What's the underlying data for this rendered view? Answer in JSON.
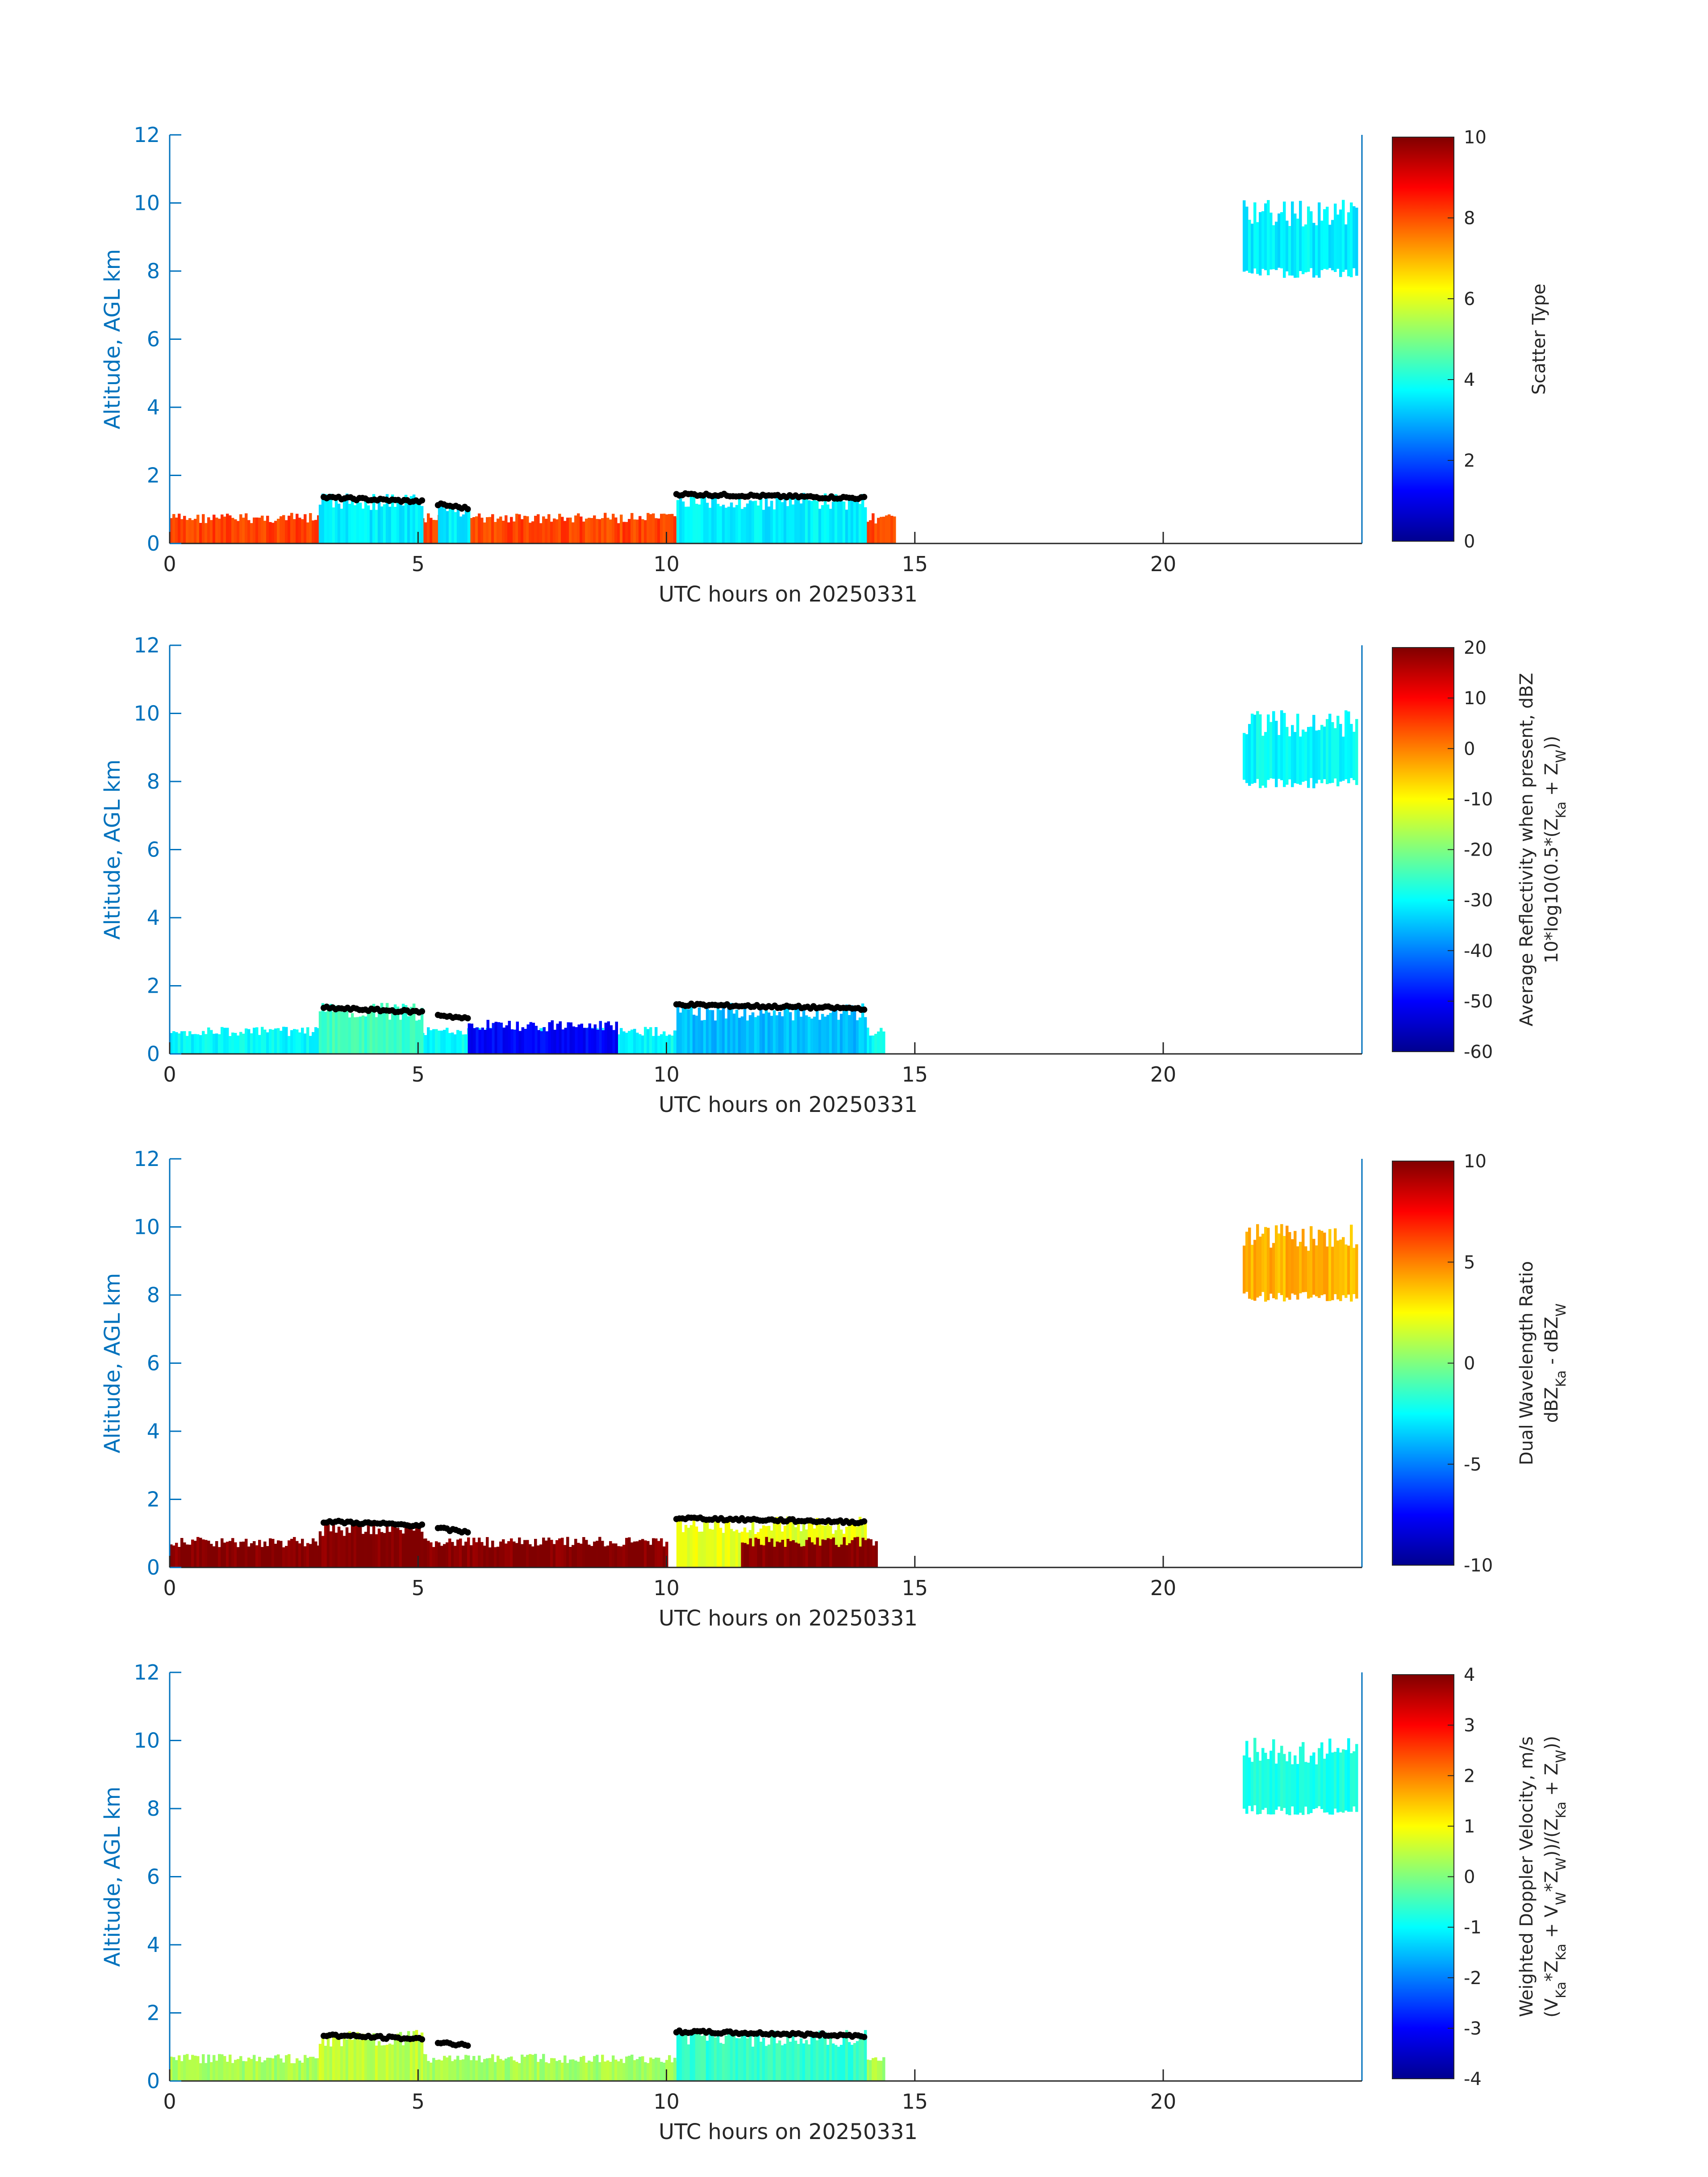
{
  "chart_data": [
    {
      "type": "heatmap",
      "xlabel": "UTC hours on 20250331",
      "ylabel": "Altitude, AGL km",
      "xlim": [
        0,
        24
      ],
      "ylim": [
        0,
        12
      ],
      "x_ticks": [
        0,
        5,
        10,
        15,
        20
      ],
      "y_ticks": [
        0,
        2,
        4,
        6,
        8,
        10,
        12
      ],
      "colorbar": {
        "label_lines": [
          "Scatter Type"
        ],
        "range": [
          0,
          10
        ],
        "ticks": [
          0,
          2,
          4,
          6,
          8,
          10
        ],
        "tick_labels": [
          "0",
          "2",
          "4",
          "6",
          "8",
          "10"
        ],
        "colormap": "jet"
      },
      "regions": [
        {
          "x0": 0.0,
          "x1": 14.6,
          "top": 0.9,
          "value": 8.1
        },
        {
          "x0": 3.0,
          "x1": 5.1,
          "top": 1.5,
          "value": 3.6
        },
        {
          "x0": 5.4,
          "x1": 6.0,
          "top": 1.2,
          "value": 3.6
        },
        {
          "x0": 10.2,
          "x1": 14.0,
          "top": 1.5,
          "value": 3.6
        },
        {
          "x0": 21.6,
          "x1": 23.9,
          "bottom": 7.8,
          "top": 10.1,
          "value": 3.6
        }
      ],
      "cloud_top_markers": [
        {
          "x0": 3.1,
          "x1": 5.1,
          "y": 1.35
        },
        {
          "x0": 5.4,
          "x1": 6.0,
          "y": 1.15
        },
        {
          "x0": 10.2,
          "x1": 14.0,
          "y": 1.45
        }
      ]
    },
    {
      "type": "heatmap",
      "xlabel": "UTC hours on 20250331",
      "ylabel": "Altitude, AGL km",
      "xlim": [
        0,
        24
      ],
      "ylim": [
        0,
        12
      ],
      "x_ticks": [
        0,
        5,
        10,
        15,
        20
      ],
      "y_ticks": [
        0,
        2,
        4,
        6,
        8,
        10,
        12
      ],
      "colorbar": {
        "label_lines": [
          "Average Reflectivity when present, dBZ",
          "10*log10(0.5*(Z_Ka + Z_W))"
        ],
        "range": [
          -60,
          20
        ],
        "ticks": [
          -60,
          -50,
          -40,
          -30,
          -20,
          -10,
          0,
          10,
          20
        ],
        "tick_labels": [
          "-60",
          "-50",
          "-40",
          "-30",
          "-20",
          "-10",
          "0",
          "10",
          "20"
        ],
        "colormap": "jet"
      },
      "regions": [
        {
          "x0": 0.0,
          "x1": 14.4,
          "top": 0.8,
          "value": -30
        },
        {
          "x0": 6.0,
          "x1": 9.0,
          "top": 1.0,
          "value": -50
        },
        {
          "x0": 3.0,
          "x1": 5.1,
          "top": 1.5,
          "value": -25
        },
        {
          "x0": 10.2,
          "x1": 14.0,
          "top": 1.5,
          "value": -35
        },
        {
          "x0": 21.6,
          "x1": 23.9,
          "bottom": 7.8,
          "top": 10.1,
          "value": -30
        }
      ],
      "cloud_top_markers": [
        {
          "x0": 3.1,
          "x1": 5.1,
          "y": 1.35
        },
        {
          "x0": 5.4,
          "x1": 6.0,
          "y": 1.15
        },
        {
          "x0": 10.2,
          "x1": 14.0,
          "y": 1.45
        }
      ]
    },
    {
      "type": "heatmap",
      "xlabel": "UTC hours on 20250331",
      "ylabel": "Altitude, AGL km",
      "xlim": [
        0,
        24
      ],
      "ylim": [
        0,
        12
      ],
      "x_ticks": [
        0,
        5,
        10,
        15,
        20
      ],
      "y_ticks": [
        0,
        2,
        4,
        6,
        8,
        10,
        12
      ],
      "colorbar": {
        "label_lines": [
          "Dual Wavelength Ratio",
          "dBZ_Ka - dBZ_W"
        ],
        "range": [
          -10,
          10
        ],
        "ticks": [
          -10,
          -5,
          0,
          5,
          10
        ],
        "tick_labels": [
          "-10",
          "-5",
          "0",
          "5",
          "10"
        ],
        "colormap": "jet"
      },
      "regions": [
        {
          "x0": 0.0,
          "x1": 10.0,
          "top": 0.9,
          "value": 10
        },
        {
          "x0": 3.0,
          "x1": 5.1,
          "top": 1.4,
          "value": 10
        },
        {
          "x0": 10.2,
          "x1": 14.0,
          "top": 1.5,
          "value": 2
        },
        {
          "x0": 11.5,
          "x1": 14.2,
          "top": 0.9,
          "value": 10
        },
        {
          "x0": 21.6,
          "x1": 23.9,
          "bottom": 7.8,
          "top": 10.1,
          "value": 4
        }
      ],
      "cloud_top_markers": [
        {
          "x0": 3.1,
          "x1": 5.1,
          "y": 1.35
        },
        {
          "x0": 5.4,
          "x1": 6.0,
          "y": 1.15
        },
        {
          "x0": 10.2,
          "x1": 14.0,
          "y": 1.45
        }
      ]
    },
    {
      "type": "heatmap",
      "xlabel": "UTC hours on 20250331",
      "ylabel": "Altitude, AGL km",
      "xlim": [
        0,
        24
      ],
      "ylim": [
        0,
        12
      ],
      "x_ticks": [
        0,
        5,
        10,
        15,
        20
      ],
      "y_ticks": [
        0,
        2,
        4,
        6,
        8,
        10,
        12
      ],
      "colorbar": {
        "label_lines": [
          "Weighted Doppler Velocity, m/s",
          "(V_Ka*Z_Ka + V_W*Z_W))/(Z_Ka + Z_W))"
        ],
        "range": [
          -4,
          4
        ],
        "ticks": [
          -4,
          -3,
          -2,
          -1,
          0,
          1,
          2,
          3,
          4
        ],
        "tick_labels": [
          "-4",
          "-3",
          "-2",
          "-1",
          "0",
          "1",
          "2",
          "3",
          "4"
        ],
        "colormap": "jet"
      },
      "regions": [
        {
          "x0": 0.0,
          "x1": 14.4,
          "top": 0.8,
          "value": 0.3
        },
        {
          "x0": 3.0,
          "x1": 5.1,
          "top": 1.5,
          "value": 0.5
        },
        {
          "x0": 10.2,
          "x1": 14.0,
          "top": 1.5,
          "value": -0.6
        },
        {
          "x0": 21.6,
          "x1": 23.9,
          "bottom": 7.8,
          "top": 10.1,
          "value": -0.8
        }
      ],
      "cloud_top_markers": [
        {
          "x0": 3.1,
          "x1": 5.1,
          "y": 1.35
        },
        {
          "x0": 5.4,
          "x1": 6.0,
          "y": 1.15
        },
        {
          "x0": 10.2,
          "x1": 14.0,
          "y": 1.45
        }
      ]
    }
  ]
}
